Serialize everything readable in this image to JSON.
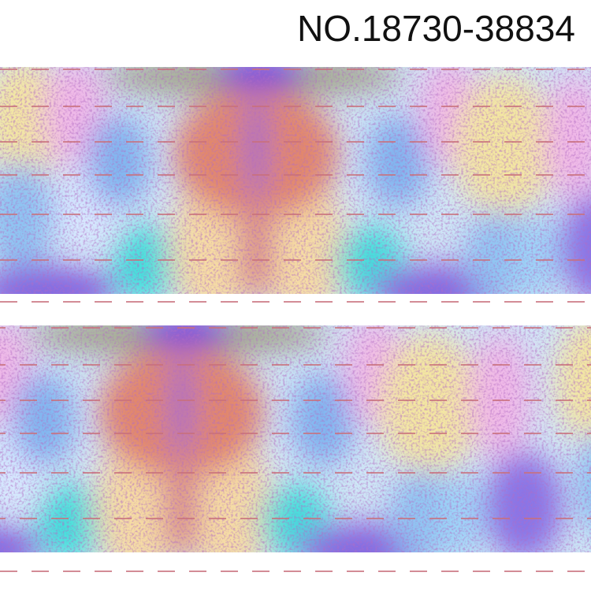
{
  "product_code": "NO.18730-38834"
}
